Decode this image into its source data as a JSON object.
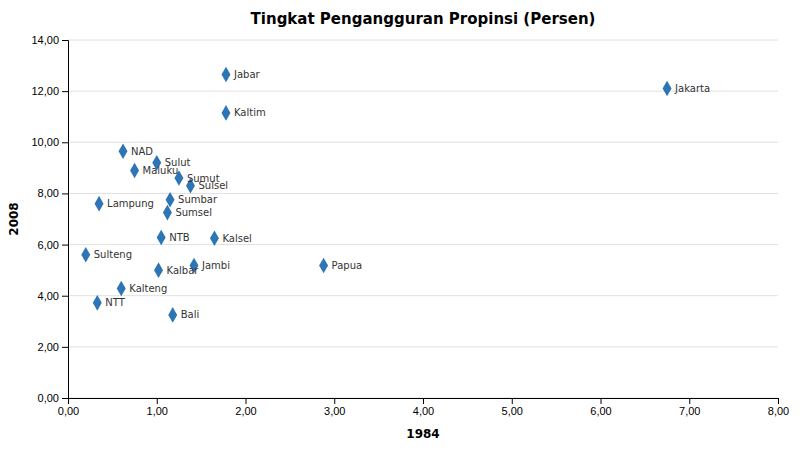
{
  "chart_data": {
    "type": "scatter",
    "title": "Tingkat Pengangguran Propinsi (Persen)",
    "x_label": "1984",
    "y_label": "2008",
    "x": [
      6.75,
      1.78,
      1.78,
      0.62,
      1.0,
      0.75,
      1.25,
      1.38,
      0.35,
      1.15,
      1.12,
      1.05,
      1.65,
      0.2,
      1.42,
      2.88,
      1.02,
      0.6,
      0.33,
      1.18
    ],
    "values": [
      12.1,
      12.65,
      11.15,
      9.65,
      9.2,
      8.9,
      8.6,
      8.3,
      7.6,
      7.75,
      7.25,
      6.28,
      6.25,
      5.6,
      5.18,
      5.18,
      5.0,
      4.28,
      3.72,
      3.25
    ],
    "labels": [
      "Jakarta",
      "Jabar",
      "Kaltim",
      "NAD",
      "Sulut",
      "Maluku",
      "Sumut",
      "Sulsel",
      "Lampung",
      "Sumbar",
      "Sumsel",
      "NTB",
      "Kalsel",
      "Sulteng",
      "Jambi",
      "Papua",
      "Kalbar",
      "Kalteng",
      "NTT",
      "Bali"
    ],
    "color": "#2E75B6",
    "marker": "diamond",
    "xlim": [
      0.0,
      8.0
    ],
    "ylim": [
      0.0,
      14.0
    ],
    "xticks": [
      {
        "value": 0.0,
        "label": "0,00"
      },
      {
        "value": 1.0,
        "label": "1,00"
      },
      {
        "value": 2.0,
        "label": "2,00"
      },
      {
        "value": 3.0,
        "label": "3,00"
      },
      {
        "value": 4.0,
        "label": "4,00"
      },
      {
        "value": 5.0,
        "label": "5,00"
      },
      {
        "value": 6.0,
        "label": "6,00"
      },
      {
        "value": 7.0,
        "label": "7,00"
      },
      {
        "value": 8.0,
        "label": "8,00"
      }
    ],
    "yticks": [
      {
        "value": 0.0,
        "label": "0,00"
      },
      {
        "value": 2.0,
        "label": "2,00"
      },
      {
        "value": 4.0,
        "label": "4,00"
      },
      {
        "value": 6.0,
        "label": "6,00"
      },
      {
        "value": 8.0,
        "label": "8,00"
      },
      {
        "value": 10.0,
        "label": "10,00"
      },
      {
        "value": 12.0,
        "label": "12,00"
      },
      {
        "value": 14.0,
        "label": "14,00"
      }
    ],
    "grid": "y"
  }
}
